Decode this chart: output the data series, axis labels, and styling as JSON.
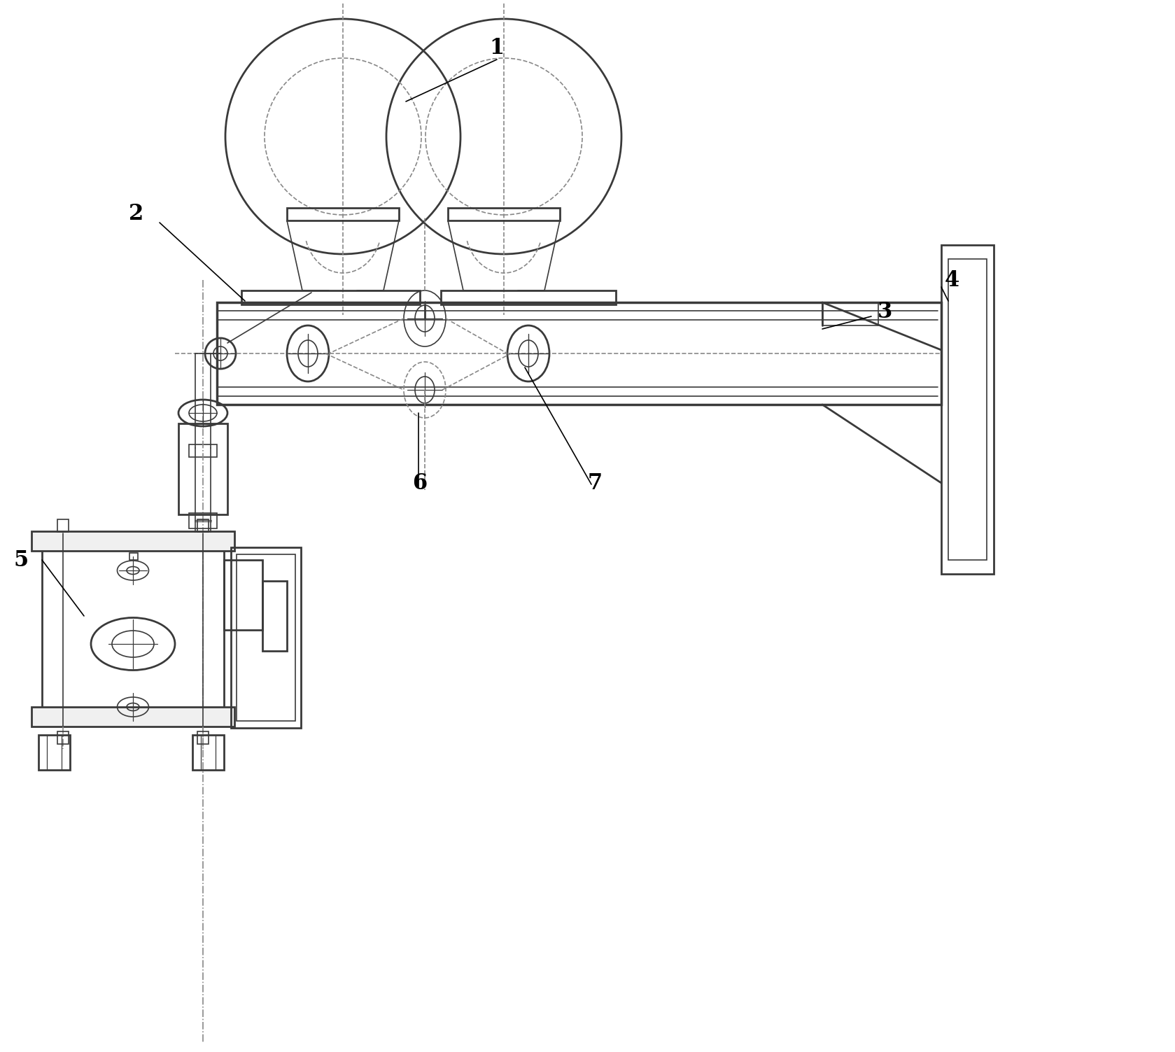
{
  "background_color": "#ffffff",
  "line_color": "#3a3a3a",
  "dashed_color": "#888888",
  "fig_width": 16.79,
  "fig_height": 15.03,
  "label_fontsize": 22
}
